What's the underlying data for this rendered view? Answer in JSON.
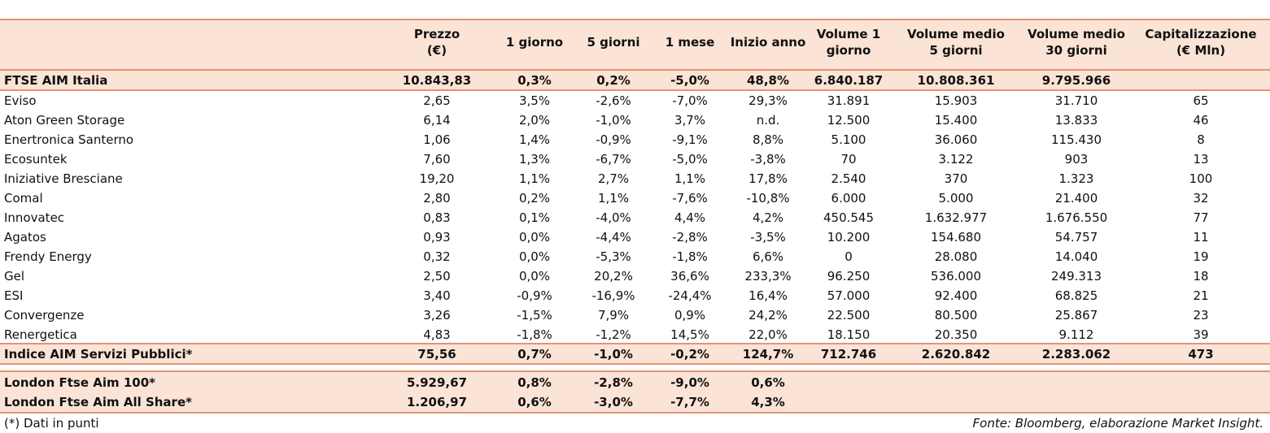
{
  "headers": [
    [
      "Prezzo",
      "(€)"
    ],
    [
      "1 giorno"
    ],
    [
      "5 giorni"
    ],
    [
      "1 mese"
    ],
    [
      "Inizio anno"
    ],
    [
      "Volume 1",
      "giorno"
    ],
    [
      "Volume medio",
      "5 giorni"
    ],
    [
      "Volume medio",
      "30 giorni"
    ],
    [
      "Capitalizzazione",
      "(€ Mln)"
    ]
  ],
  "index_row": [
    "FTSE AIM Italia",
    "10.843,83",
    "0,3%",
    "0,2%",
    "-5,0%",
    "48,8%",
    "6.840.187",
    "10.808.361",
    "9.795.966",
    ""
  ],
  "rows": [
    [
      "Eviso",
      "2,65",
      "3,5%",
      "-2,6%",
      "-7,0%",
      "29,3%",
      "31.891",
      "15.903",
      "31.710",
      "65"
    ],
    [
      "Aton Green Storage",
      "6,14",
      "2,0%",
      "-1,0%",
      "3,7%",
      "n.d.",
      "12.500",
      "15.400",
      "13.833",
      "46"
    ],
    [
      "Enertronica Santerno",
      "1,06",
      "1,4%",
      "-0,9%",
      "-9,1%",
      "8,8%",
      "5.100",
      "36.060",
      "115.430",
      "8"
    ],
    [
      "Ecosuntek",
      "7,60",
      "1,3%",
      "-6,7%",
      "-5,0%",
      "-3,8%",
      "70",
      "3.122",
      "903",
      "13"
    ],
    [
      "Iniziative Bresciane",
      "19,20",
      "1,1%",
      "2,7%",
      "1,1%",
      "17,8%",
      "2.540",
      "370",
      "1.323",
      "100"
    ],
    [
      "Comal",
      "2,80",
      "0,2%",
      "1,1%",
      "-7,6%",
      "-10,8%",
      "6.000",
      "5.000",
      "21.400",
      "32"
    ],
    [
      "Innovatec",
      "0,83",
      "0,1%",
      "-4,0%",
      "4,4%",
      "4,2%",
      "450.545",
      "1.632.977",
      "1.676.550",
      "77"
    ],
    [
      "Agatos",
      "0,93",
      "0,0%",
      "-4,4%",
      "-2,8%",
      "-3,5%",
      "10.200",
      "154.680",
      "54.757",
      "11"
    ],
    [
      "Frendy Energy",
      "0,32",
      "0,0%",
      "-5,3%",
      "-1,8%",
      "6,6%",
      "0",
      "28.080",
      "14.040",
      "19"
    ],
    [
      "Gel",
      "2,50",
      "0,0%",
      "20,2%",
      "36,6%",
      "233,3%",
      "96.250",
      "536.000",
      "249.313",
      "18"
    ],
    [
      "ESI",
      "3,40",
      "-0,9%",
      "-16,9%",
      "-24,4%",
      "16,4%",
      "57.000",
      "92.400",
      "68.825",
      "21"
    ],
    [
      "Convergenze",
      "3,26",
      "-1,5%",
      "7,9%",
      "0,9%",
      "24,2%",
      "22.500",
      "80.500",
      "25.867",
      "23"
    ],
    [
      "Renergetica",
      "4,83",
      "-1,8%",
      "-1,2%",
      "14,5%",
      "22,0%",
      "18.150",
      "20.350",
      "9.112",
      "39"
    ]
  ],
  "sector_row": [
    "Indice AIM Servizi Pubblici*",
    "75,56",
    "0,7%",
    "-1,0%",
    "-0,2%",
    "124,7%",
    "712.746",
    "2.620.842",
    "2.283.062",
    "473"
  ],
  "london_rows": [
    [
      "London Ftse Aim 100*",
      "5.929,67",
      "0,8%",
      "-2,8%",
      "-9,0%",
      "0,6%",
      "",
      "",
      "",
      ""
    ],
    [
      "London Ftse Aim All Share*",
      "1.206,97",
      "0,6%",
      "-3,0%",
      "-7,7%",
      "4,3%",
      "",
      "",
      "",
      ""
    ]
  ],
  "footnote": "(*) Dati in punti",
  "source": "Fonte: Bloomberg, elaborazione Market Insight.",
  "colors": {
    "band": "#fbe3d6",
    "rule": "#e69373"
  }
}
